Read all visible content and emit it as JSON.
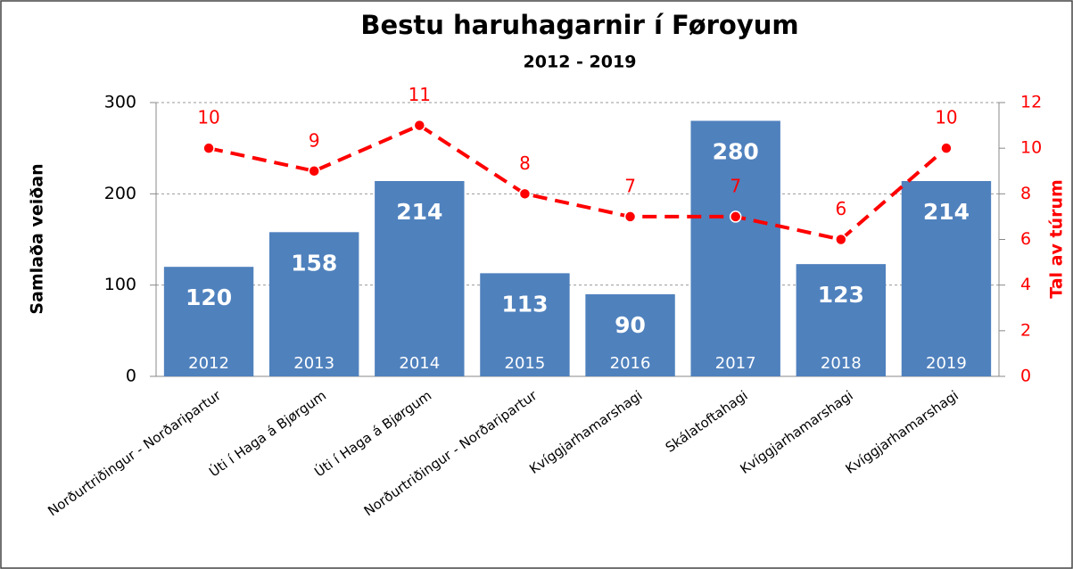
{
  "chart_data": {
    "type": "bar",
    "title": "Bestu haruhagarnir í Føroyum",
    "subtitle": "2012 - 2019",
    "y_label": "Samlaða veiðan",
    "y2_label": "Tal av túrum",
    "categories": [
      "Norðurtriðingur - Norðaripartur",
      "Úti í Haga á Bjørgum",
      "Úti í Haga á Bjørgum",
      "Norðurtriðingur - Norðaripartur",
      "Kvíggjarhamarshagi",
      "Skálatoftahagi",
      "Kvíggjarhamarshagi",
      "Kvíggjarhamarshagi"
    ],
    "year_labels": [
      "2012",
      "2013",
      "2014",
      "2015",
      "2016",
      "2017",
      "2018",
      "2019"
    ],
    "series": [
      {
        "type": "bar",
        "color": "#4f81bd",
        "values": [
          120,
          158,
          214,
          113,
          90,
          280,
          123,
          214
        ]
      },
      {
        "type": "line",
        "axis": "y2",
        "color": "#ff0000",
        "line_style": "dashed",
        "values": [
          10,
          9,
          11,
          8,
          7,
          7,
          6,
          10
        ]
      }
    ],
    "ylim": [
      0,
      300
    ],
    "yticks": [
      0,
      100,
      200,
      300
    ],
    "y2lim": [
      0,
      12
    ],
    "y2ticks": [
      0,
      2,
      4,
      6,
      8,
      10,
      12
    ],
    "grid": true
  }
}
